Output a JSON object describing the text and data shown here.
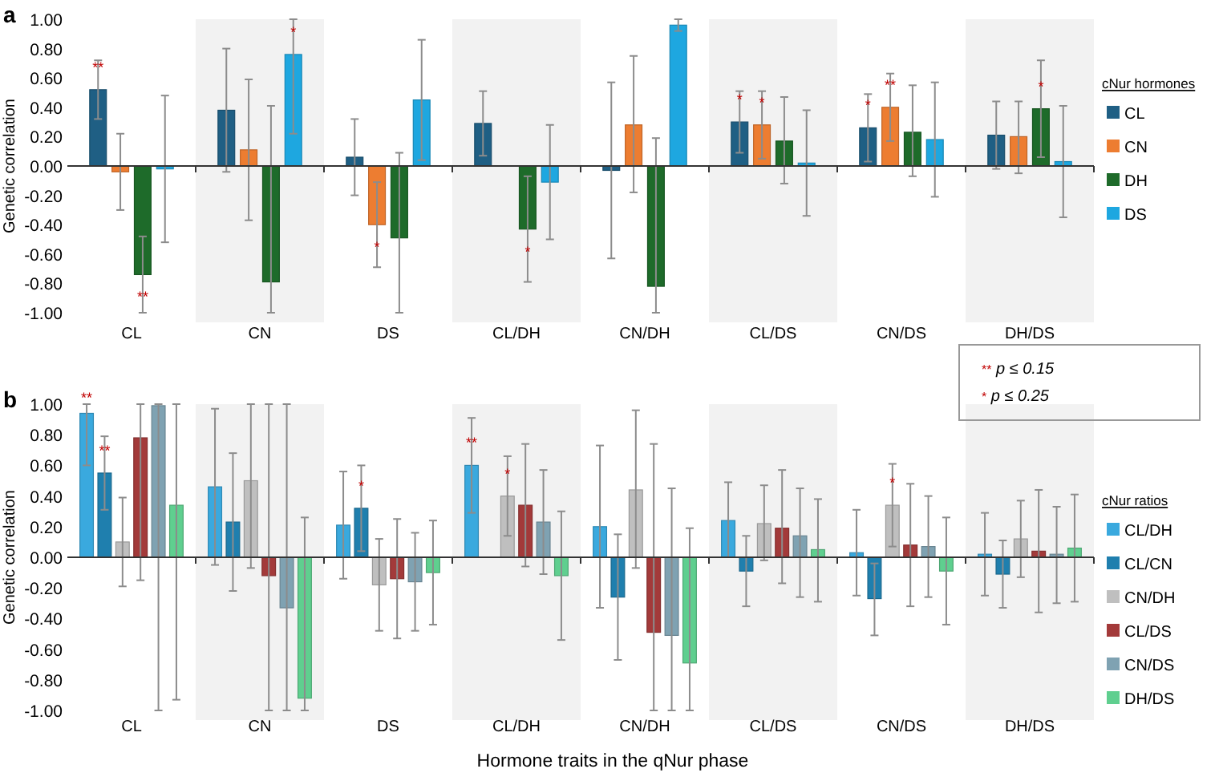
{
  "chart_data": [
    {
      "type": "bar",
      "title": "a",
      "ylabel": "Genetic correlation",
      "legend_title": "cNur hormones",
      "legend": "right",
      "categories": [
        "CL",
        "CN",
        "DS",
        "CL/DH",
        "CN/DH",
        "CL/DS",
        "CN/DS",
        "DH/DS"
      ],
      "ylim": [
        -1,
        1
      ],
      "yticks": [
        {
          "value": -1,
          "label": "-1.00"
        },
        {
          "value": -0.8,
          "label": "-0.80"
        },
        {
          "value": -0.6,
          "label": "-0.60"
        },
        {
          "value": -0.4,
          "label": "-0.40"
        },
        {
          "value": -0.2,
          "label": "-0.20"
        },
        {
          "value": 0,
          "label": "0.00"
        },
        {
          "value": 0.2,
          "label": "0.20"
        },
        {
          "value": 0.4,
          "label": "0.40"
        },
        {
          "value": 0.6,
          "label": "0.60"
        },
        {
          "value": 0.8,
          "label": "0.80"
        },
        {
          "value": 1,
          "label": "1.00"
        }
      ],
      "bands": [
        {
          "axis": "x",
          "from": "CN",
          "to": "CN",
          "color": "#f2f2f2"
        },
        {
          "axis": "x",
          "from": "CL/DH",
          "to": "CL/DH",
          "color": "#f2f2f2"
        },
        {
          "axis": "x",
          "from": "CL/DS",
          "to": "CL/DS",
          "color": "#f2f2f2"
        },
        {
          "axis": "x",
          "from": "DH/DS",
          "to": "DH/DS",
          "color": "#f2f2f2"
        }
      ],
      "series": [
        {
          "name": "CL",
          "color": "#1f5f84",
          "values": [
            0.52,
            0.38,
            0.06,
            0.29,
            -0.03,
            0.3,
            0.26,
            0.21
          ],
          "errors": [
            [
              0.32,
              0.72
            ],
            [
              -0.04,
              0.8
            ],
            [
              -0.2,
              0.32
            ],
            [
              0.07,
              0.51
            ],
            [
              -0.63,
              0.57
            ],
            [
              0.09,
              0.51
            ],
            [
              0.03,
              0.49
            ],
            [
              -0.02,
              0.44
            ]
          ],
          "value_labels": [
            "**",
            null,
            null,
            null,
            null,
            "*",
            "*",
            null
          ]
        },
        {
          "name": "CN",
          "color": "#ed7d31",
          "values": [
            -0.04,
            0.11,
            -0.4,
            null,
            0.28,
            0.28,
            0.4,
            0.2
          ],
          "errors": [
            [
              -0.3,
              0.22
            ],
            [
              -0.37,
              0.59
            ],
            [
              -0.69,
              -0.11
            ],
            null,
            [
              -0.18,
              0.75
            ],
            [
              0.05,
              0.51
            ],
            [
              0.17,
              0.63
            ],
            [
              -0.05,
              0.44
            ]
          ],
          "value_labels": [
            null,
            null,
            "*",
            null,
            null,
            "*",
            "**",
            null
          ]
        },
        {
          "name": "DH",
          "color": "#1e6b2a",
          "values": [
            -0.74,
            -0.79,
            -0.49,
            -0.43,
            -0.82,
            0.17,
            0.23,
            0.39
          ],
          "errors": [
            [
              -1,
              -0.48
            ],
            [
              -1,
              0.41
            ],
            [
              -1,
              0.09
            ],
            [
              -0.79,
              -0.07
            ],
            [
              -1,
              0.19
            ],
            [
              -0.12,
              0.47
            ],
            [
              -0.07,
              0.55
            ],
            [
              0.06,
              0.72
            ]
          ],
          "value_labels": [
            "**",
            null,
            null,
            "*",
            null,
            null,
            null,
            "*"
          ]
        },
        {
          "name": "DS",
          "color": "#1ea7e0",
          "values": [
            -0.02,
            0.76,
            0.45,
            -0.11,
            0.96,
            0.02,
            0.18,
            0.03
          ],
          "errors": [
            [
              -0.52,
              0.48
            ],
            [
              0.22,
              1
            ],
            [
              0.04,
              0.86
            ],
            [
              -0.5,
              0.28
            ],
            [
              0.92,
              1
            ],
            [
              -0.34,
              0.38
            ],
            [
              -0.21,
              0.57
            ],
            [
              -0.35,
              0.41
            ]
          ],
          "value_labels": [
            null,
            "*",
            null,
            null,
            null,
            null,
            null,
            null
          ]
        }
      ]
    },
    {
      "type": "bar",
      "title": "b",
      "ylabel": "Genetic correlation",
      "xlabel": "Hormone traits in the qNur phase",
      "legend_title": "cNur ratios",
      "legend": "right",
      "categories": [
        "CL",
        "CN",
        "DS",
        "CL/DH",
        "CN/DH",
        "CL/DS",
        "CN/DS",
        "DH/DS"
      ],
      "ylim": [
        -1,
        1
      ],
      "yticks": [
        {
          "value": -1,
          "label": "-1.00"
        },
        {
          "value": -0.8,
          "label": "-0.80"
        },
        {
          "value": -0.6,
          "label": "-0.60"
        },
        {
          "value": -0.4,
          "label": "-0.40"
        },
        {
          "value": -0.2,
          "label": "-0.20"
        },
        {
          "value": 0,
          "label": "0.00"
        },
        {
          "value": 0.2,
          "label": "0.20"
        },
        {
          "value": 0.4,
          "label": "0.40"
        },
        {
          "value": 0.6,
          "label": "0.60"
        },
        {
          "value": 0.8,
          "label": "0.80"
        },
        {
          "value": 1,
          "label": "1.00"
        }
      ],
      "bands": [
        {
          "axis": "x",
          "from": "CN",
          "to": "CN",
          "color": "#f2f2f2"
        },
        {
          "axis": "x",
          "from": "CL/DH",
          "to": "CL/DH",
          "color": "#f2f2f2"
        },
        {
          "axis": "x",
          "from": "CL/DS",
          "to": "CL/DS",
          "color": "#f2f2f2"
        },
        {
          "axis": "x",
          "from": "DH/DS",
          "to": "DH/DS",
          "color": "#f2f2f2"
        }
      ],
      "annotations": [
        "** p ≤ 0.15",
        "* p ≤ 0.25"
      ],
      "series": [
        {
          "name": "CL/DH",
          "color": "#3aa9de",
          "values": [
            0.94,
            0.46,
            0.21,
            0.6,
            0.2,
            0.24,
            0.03,
            0.02
          ],
          "errors": [
            [
              0.6,
              1
            ],
            [
              -0.05,
              0.97
            ],
            [
              -0.14,
              0.56
            ],
            [
              0.29,
              0.91
            ],
            [
              -0.33,
              0.73
            ],
            [
              0,
              0.49
            ],
            [
              -0.25,
              0.31
            ],
            [
              -0.25,
              0.29
            ]
          ],
          "value_labels": [
            "**",
            null,
            null,
            "**",
            null,
            null,
            null,
            null
          ]
        },
        {
          "name": "CL/CN",
          "color": "#1f7fae",
          "values": [
            0.55,
            0.23,
            0.32,
            null,
            -0.26,
            -0.09,
            -0.27,
            -0.11
          ],
          "errors": [
            [
              0.31,
              0.79
            ],
            [
              -0.22,
              0.68
            ],
            [
              0.04,
              0.6
            ],
            null,
            [
              -0.67,
              0.15
            ],
            [
              -0.32,
              0.14
            ],
            [
              -0.51,
              -0.04
            ],
            [
              -0.33,
              0.11
            ]
          ],
          "value_labels": [
            "**",
            null,
            "*",
            null,
            null,
            null,
            null,
            null
          ]
        },
        {
          "name": "CN/DH",
          "color": "#bfbfbf",
          "values": [
            0.1,
            0.5,
            -0.18,
            0.4,
            0.44,
            0.22,
            0.34,
            0.12
          ],
          "errors": [
            [
              -0.19,
              0.39
            ],
            [
              -0.07,
              1
            ],
            [
              -0.48,
              0.12
            ],
            [
              0.14,
              0.66
            ],
            [
              -0.07,
              0.96
            ],
            [
              -0.02,
              0.47
            ],
            [
              0.07,
              0.61
            ],
            [
              -0.13,
              0.37
            ]
          ],
          "value_labels": [
            null,
            null,
            null,
            "*",
            null,
            null,
            "*",
            null
          ]
        },
        {
          "name": "CL/DS",
          "color": "#a33a3a",
          "values": [
            0.78,
            -0.12,
            -0.14,
            0.34,
            -0.49,
            0.19,
            0.08,
            0.04
          ],
          "errors": [
            [
              -0.15,
              1
            ],
            [
              -1,
              1
            ],
            [
              -0.53,
              0.25
            ],
            [
              -0.06,
              0.74
            ],
            [
              -1,
              0.74
            ],
            [
              -0.17,
              0.57
            ],
            [
              -0.32,
              0.48
            ],
            [
              -0.36,
              0.44
            ]
          ],
          "value_labels": [
            null,
            null,
            null,
            null,
            null,
            null,
            null,
            null
          ]
        },
        {
          "name": "CN/DS",
          "color": "#7fa2b2",
          "values": [
            0.99,
            -0.33,
            -0.16,
            0.23,
            -0.51,
            0.14,
            0.07,
            0.02
          ],
          "errors": [
            [
              -1,
              1
            ],
            [
              -1,
              1
            ],
            [
              -0.48,
              0.16
            ],
            [
              -0.11,
              0.57
            ],
            [
              -1,
              0.45
            ],
            [
              -0.26,
              0.45
            ],
            [
              -0.26,
              0.4
            ],
            [
              -0.3,
              0.33
            ]
          ],
          "value_labels": [
            null,
            null,
            null,
            null,
            null,
            null,
            null,
            null
          ]
        },
        {
          "name": "DH/DS",
          "color": "#5fcf8f",
          "values": [
            0.34,
            -0.92,
            -0.1,
            -0.12,
            -0.69,
            0.05,
            -0.09,
            0.06
          ],
          "errors": [
            [
              -0.93,
              1
            ],
            [
              -1,
              0.26
            ],
            [
              -0.44,
              0.24
            ],
            [
              -0.54,
              0.3
            ],
            [
              -1,
              0.19
            ],
            [
              -0.29,
              0.38
            ],
            [
              -0.44,
              0.26
            ],
            [
              -0.29,
              0.41
            ]
          ],
          "value_labels": [
            null,
            null,
            null,
            null,
            null,
            null,
            null,
            null
          ]
        }
      ]
    }
  ]
}
